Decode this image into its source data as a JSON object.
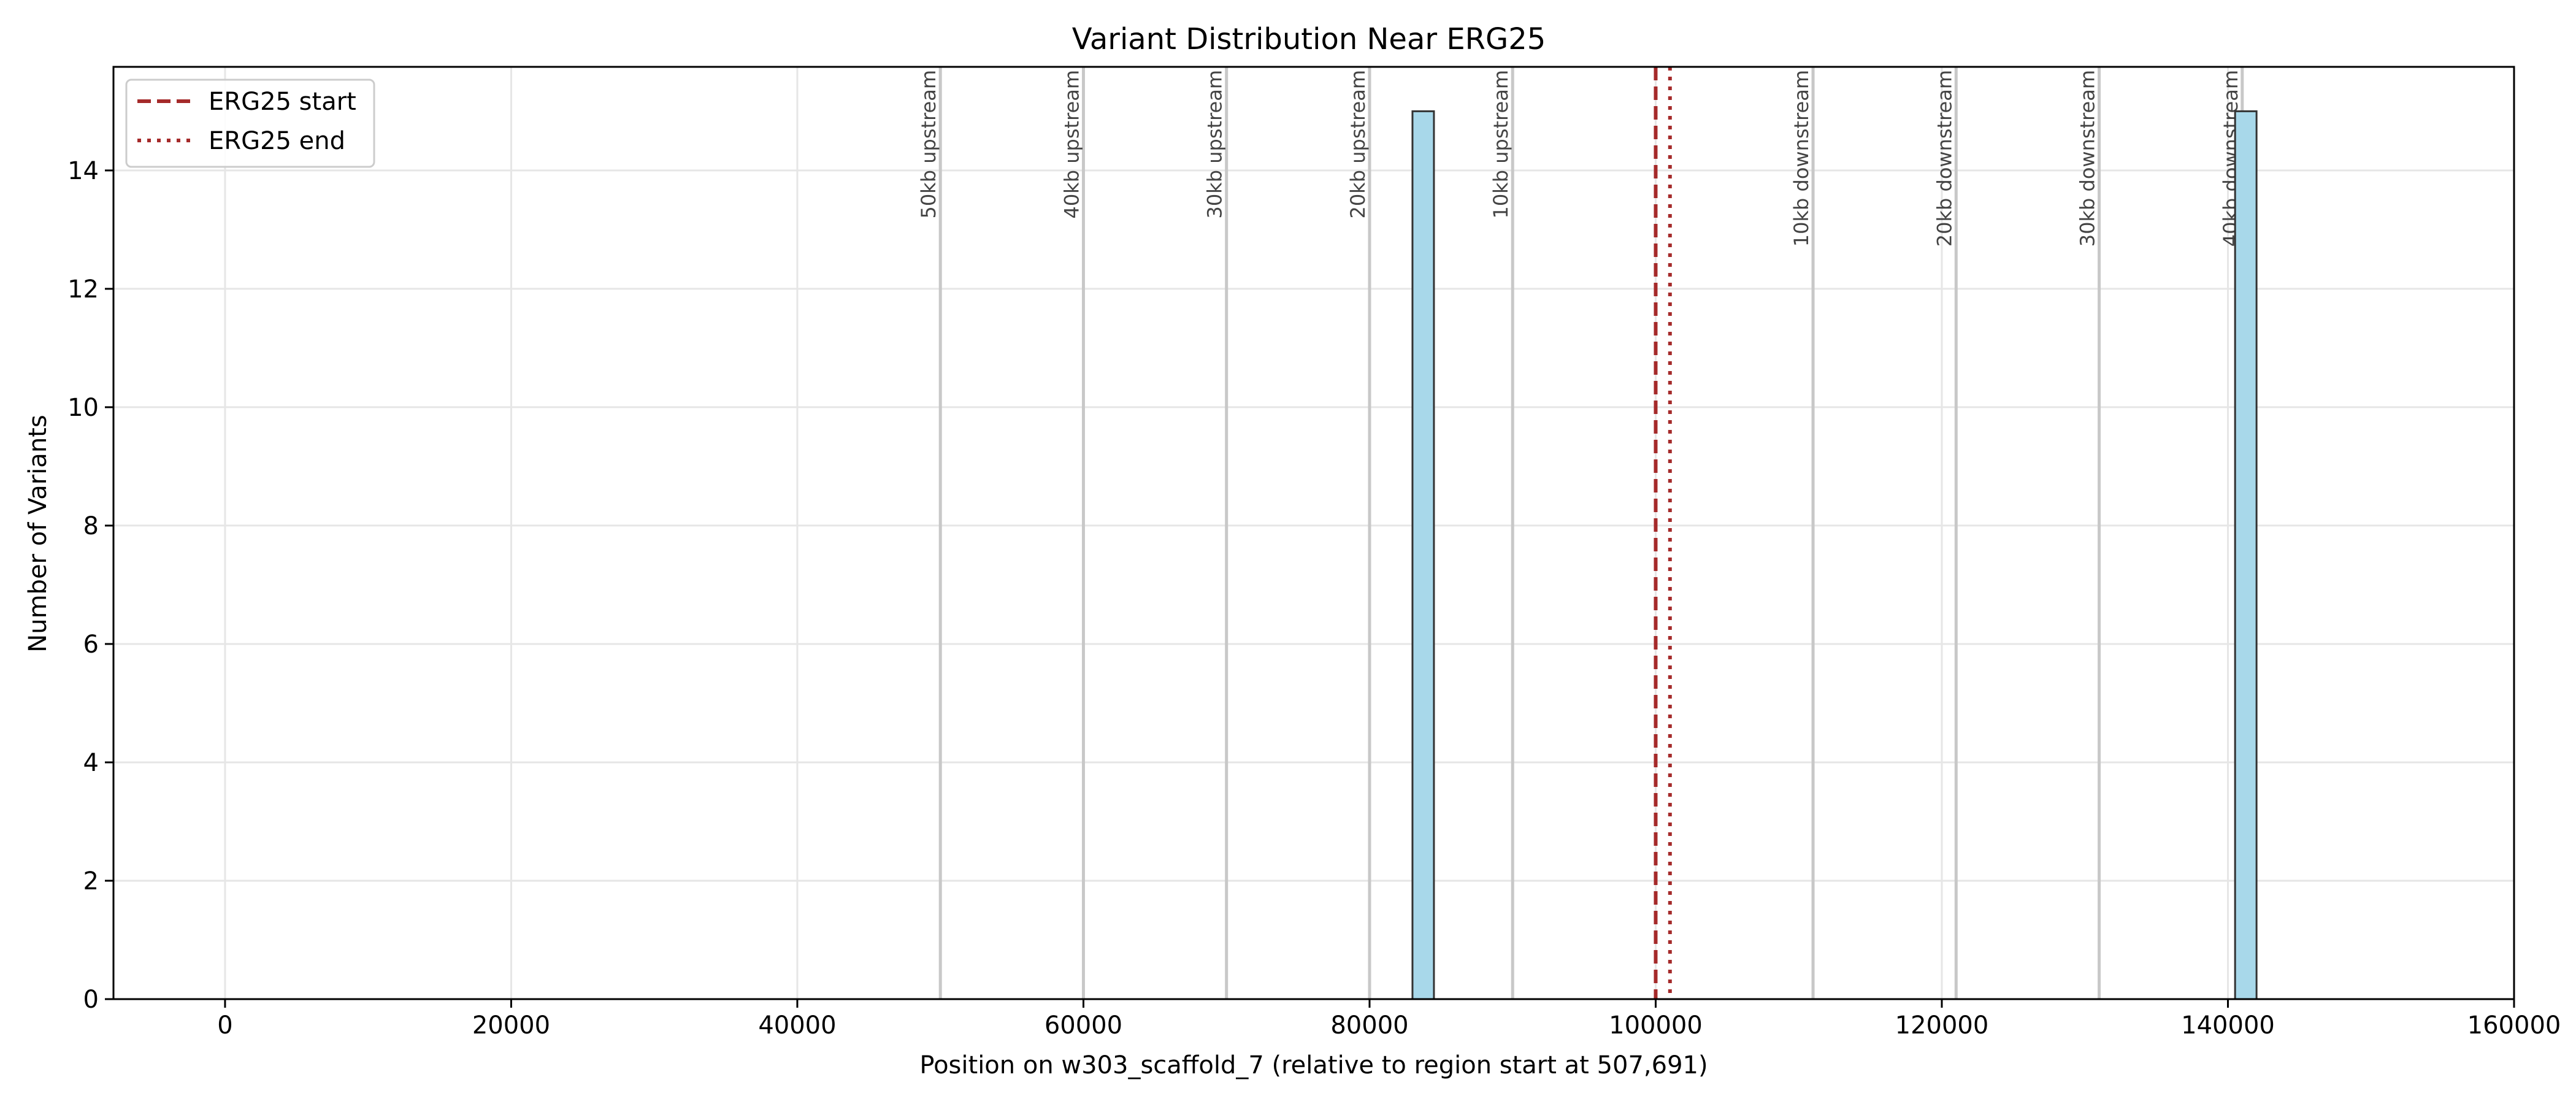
{
  "chart_data": {
    "type": "bar",
    "title": "Variant Distribution Near ERG25",
    "xlabel": "Position on w303_scaffold_7 (relative to region start at 507,691)",
    "ylabel": "Number of Variants",
    "xlim": [
      -7800,
      160000
    ],
    "ylim": [
      0,
      15.75
    ],
    "xticks": [
      0,
      20000,
      40000,
      60000,
      80000,
      100000,
      120000,
      140000,
      160000
    ],
    "yticks": [
      0,
      2,
      4,
      6,
      8,
      10,
      12,
      14
    ],
    "grid": true,
    "bars": [
      {
        "x_start": 83000,
        "x_end": 84500,
        "value": 15
      },
      {
        "x_start": 140500,
        "x_end": 142000,
        "value": 15
      }
    ],
    "distance_markers": [
      {
        "x": 50000,
        "label": "50kb upstream"
      },
      {
        "x": 60000,
        "label": "40kb upstream"
      },
      {
        "x": 70000,
        "label": "30kb upstream"
      },
      {
        "x": 80000,
        "label": "20kb upstream"
      },
      {
        "x": 90000,
        "label": "10kb upstream"
      },
      {
        "x": 111000,
        "label": "10kb downstream"
      },
      {
        "x": 121000,
        "label": "20kb downstream"
      },
      {
        "x": 131000,
        "label": "30kb downstream"
      },
      {
        "x": 141000,
        "label": "40kb downstream"
      }
    ],
    "gene_lines": [
      {
        "x": 100000,
        "name": "ERG25 start",
        "style": "dashed",
        "color": "#a52a2a"
      },
      {
        "x": 101000,
        "name": "ERG25 end",
        "style": "dotted",
        "color": "#a52a2a"
      }
    ],
    "legend_position": "top-left",
    "colors": {
      "bar_fill": "#a8d8ea",
      "bar_edge": "#333333",
      "marker_line": "#c8c8c8",
      "marker_text": "#444444"
    }
  }
}
